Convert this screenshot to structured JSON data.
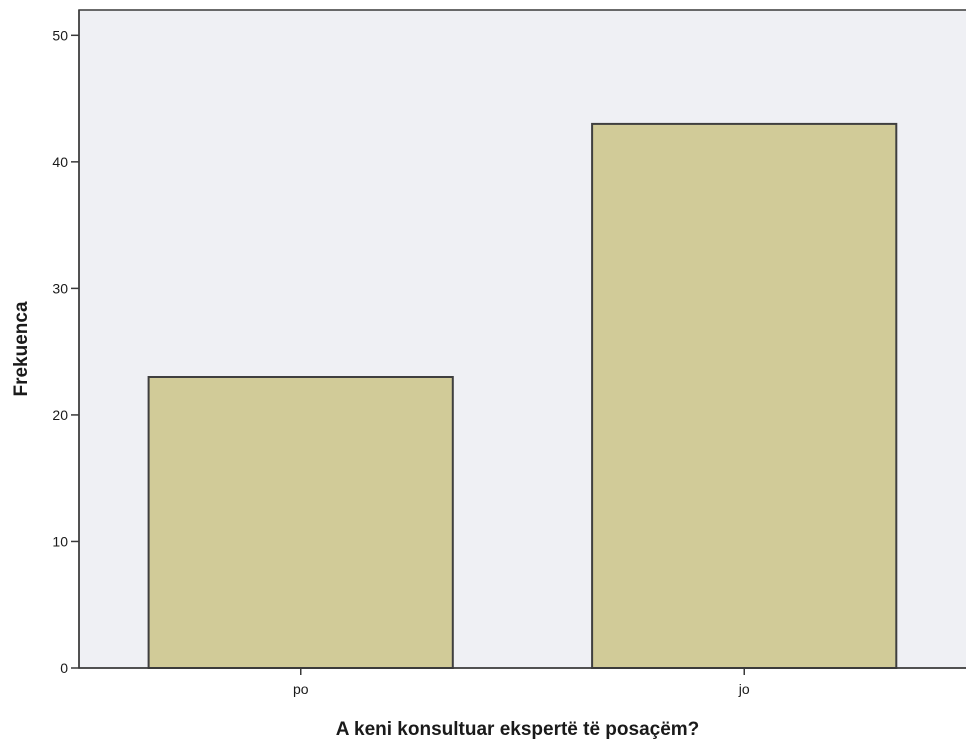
{
  "chart_data": {
    "type": "bar",
    "title": "",
    "xlabel": "A keni konsultuar ekspertë të posaçëm?",
    "ylabel": "Frekuenca",
    "categories": [
      "po",
      "jo"
    ],
    "values": [
      23,
      43
    ],
    "ylim": [
      0,
      52
    ],
    "yticks": [
      0,
      10,
      20,
      30,
      40,
      50
    ],
    "grid": false,
    "legend": "none",
    "colors": {
      "plot_background": "#eff0f4",
      "bar_fill": "#d1cb98",
      "bar_stroke": "#3f3f3f",
      "axis": "#3a3a3a"
    }
  }
}
